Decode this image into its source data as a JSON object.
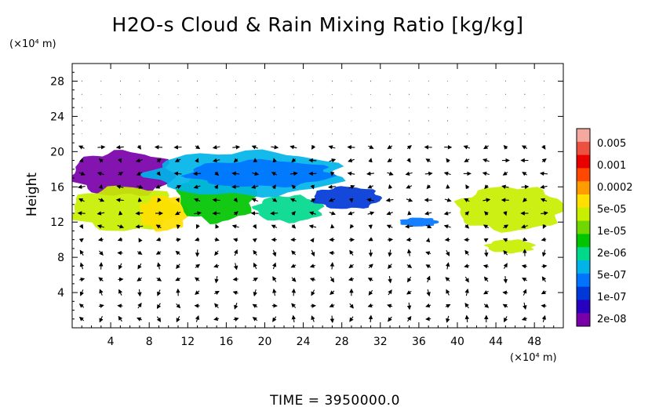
{
  "chart_data": {
    "type": "heatmap",
    "title": "H2O-s Cloud & Rain Mixing Ratio [kg/kg]",
    "y_unit": "(×10⁴ m)",
    "x_unit": "(×10⁴ m)",
    "ylabel": "Height",
    "xlabel": "",
    "xlim": [
      0,
      51
    ],
    "ylim": [
      0,
      30
    ],
    "x_ticks": [
      "4",
      "8",
      "12",
      "16",
      "20",
      "24",
      "28",
      "32",
      "36",
      "40",
      "44",
      "48"
    ],
    "x_tick_values": [
      4,
      8,
      12,
      16,
      20,
      24,
      28,
      32,
      36,
      40,
      44,
      48
    ],
    "y_ticks": [
      "4",
      "8",
      "12",
      "16",
      "20",
      "24",
      "28"
    ],
    "y_tick_values": [
      4,
      8,
      12,
      16,
      20,
      24,
      28
    ],
    "colorbar": {
      "labels": [
        "0.005",
        "0.001",
        "0.0002",
        "5e-05",
        "1e-05",
        "2e-06",
        "5e-07",
        "1e-07",
        "2e-08"
      ],
      "colors": [
        "#f4a8a0",
        "#ee5040",
        "#e80000",
        "#ff4800",
        "#ff9c00",
        "#ffe000",
        "#c8ee00",
        "#70d800",
        "#00c400",
        "#00d88c",
        "#00b4e8",
        "#0074ff",
        "#0038d8",
        "#2800c0",
        "#7800a8"
      ]
    },
    "cloud_regions": [
      {
        "x": [
          0,
          10.5
        ],
        "y": [
          15,
          20
        ],
        "level": "2e-08",
        "color": "#7800a8"
      },
      {
        "x": [
          0,
          11
        ],
        "y": [
          11,
          16
        ],
        "level": "5e-05",
        "color": "#c8ee00"
      },
      {
        "x": [
          7,
          12
        ],
        "y": [
          11,
          15
        ],
        "level": "0.0002",
        "color": "#ffe000"
      },
      {
        "x": [
          11,
          19
        ],
        "y": [
          12,
          18
        ],
        "level": "1e-05",
        "color": "#00c400"
      },
      {
        "x": [
          19,
          26
        ],
        "y": [
          12,
          15
        ],
        "level": "2e-06",
        "color": "#00d88c"
      },
      {
        "x": [
          8,
          28
        ],
        "y": [
          15,
          20
        ],
        "level": "5e-07",
        "color": "#00b4e8"
      },
      {
        "x": [
          12,
          27
        ],
        "y": [
          16,
          19
        ],
        "level": "1e-07",
        "color": "#0074ff"
      },
      {
        "x": [
          25,
          32
        ],
        "y": [
          13.5,
          16
        ],
        "level": "1e-07",
        "color": "#0038d8"
      },
      {
        "x": [
          34,
          38
        ],
        "y": [
          11.5,
          12.5
        ],
        "level": "1e-07",
        "color": "#0074ff"
      },
      {
        "x": [
          40,
          51
        ],
        "y": [
          11,
          16
        ],
        "level": "5e-05",
        "color": "#c8ee00"
      },
      {
        "x": [
          43,
          48
        ],
        "y": [
          8.5,
          10
        ],
        "level": "5e-05",
        "color": "#c8ee00"
      }
    ],
    "wind_vectors": true,
    "time_label": "TIME  =  3950000.0"
  }
}
